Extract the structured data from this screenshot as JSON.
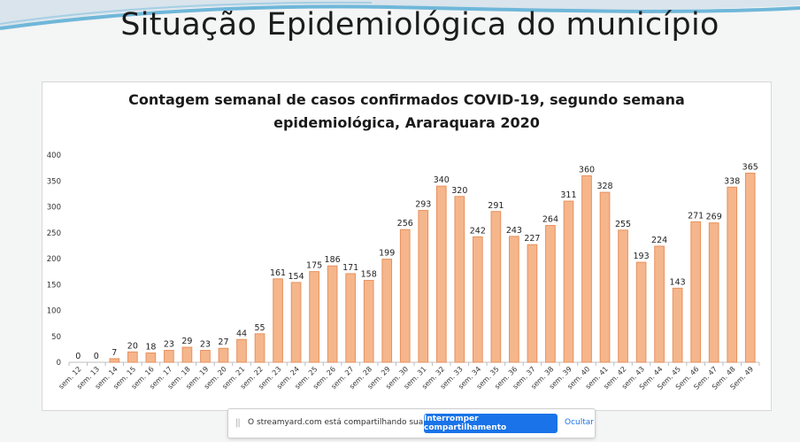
{
  "slide": {
    "title": "Situação Epidemiológica do município"
  },
  "chart_data": {
    "type": "bar",
    "title": "Contagem semanal de casos confirmados COVID-19, segundo semana epidemiológica, Araraquara 2020",
    "title_lines": [
      "Contagem semanal de casos confirmados COVID-19, segundo semana",
      "epidemiológica, Araraquara 2020"
    ],
    "categories": [
      "sem. 12",
      "sem. 13",
      "sem. 14",
      "sem. 15",
      "sem. 16",
      "sem. 17",
      "sem. 18",
      "sem. 19",
      "sem. 20",
      "sem. 21",
      "sem. 22",
      "sem. 23",
      "sem. 24",
      "sem. 25",
      "sem. 26",
      "sem. 27",
      "sem. 28",
      "sem. 29",
      "sem. 30",
      "sem. 31",
      "sem. 32",
      "sem. 33",
      "sem. 34",
      "sem. 35",
      "sem. 36",
      "sem. 37",
      "sem. 38",
      "sem. 39",
      "sem. 40",
      "sem. 41",
      "sem. 42",
      "sem. 43",
      "Sem. 44",
      "Sem. 45",
      "Sem. 46",
      "Sem. 47",
      "Sem. 48",
      "Sem. 49"
    ],
    "values": [
      0,
      0,
      7,
      20,
      18,
      23,
      29,
      23,
      27,
      44,
      55,
      161,
      154,
      175,
      186,
      171,
      158,
      199,
      256,
      293,
      340,
      320,
      242,
      291,
      243,
      227,
      264,
      311,
      360,
      328,
      255,
      193,
      224,
      143,
      271,
      269,
      338,
      365
    ],
    "ylim": [
      0,
      400
    ],
    "yticks": [
      0,
      50,
      100,
      150,
      200,
      250,
      300,
      350,
      400
    ],
    "data_labels": true,
    "grid": false,
    "legend": "none",
    "xlabel": "",
    "ylabel": "",
    "colors": {
      "bar_fill": "#f5b68c",
      "bar_stroke": "#e8915c",
      "axis": "#bfbfbf",
      "text": "#333333"
    }
  },
  "share_bar": {
    "handle": "||",
    "text": "O streamyard.com está compartilhando sua tela.",
    "stop_label": "Interromper compartilhamento",
    "hide_label": "Ocultar"
  }
}
